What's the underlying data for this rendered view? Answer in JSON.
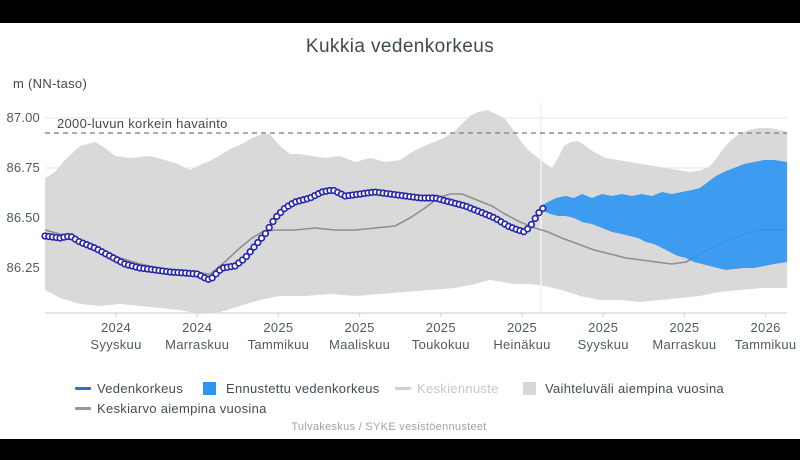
{
  "title": "Kukkia vedenkorkeus",
  "y_axis": {
    "unit_label": "m (NN-taso)",
    "ticks": [
      "87.00",
      "86.75",
      "86.50",
      "86.25"
    ]
  },
  "threshold": {
    "label": "2000-luvun korkein havainto",
    "value": 86.925
  },
  "footer": "Tulvakeskus / SYKE vesistöennusteet",
  "legend": {
    "items": [
      {
        "label": "Vedenkorkeus",
        "swatch": "line",
        "color": "#2e6bd5",
        "enabled": true
      },
      {
        "label": "Ennustettu vedenkorkeus",
        "swatch": "square",
        "color": "#2b95f2",
        "enabled": true
      },
      {
        "label": "Keskiennuste",
        "swatch": "line",
        "color": "#d0d0d0",
        "enabled": false
      },
      {
        "label": "Vaihteluväli aiempina vuosina",
        "swatch": "square",
        "color": "#d7d7d7",
        "enabled": true
      },
      {
        "label": "Keskiarvo aiempina vuosina",
        "swatch": "line",
        "color": "#979797",
        "enabled": true
      }
    ]
  },
  "chart_data": {
    "type": "line",
    "title": "Kukkia vedenkorkeus",
    "ylabel": "m (NN-taso)",
    "ylim": [
      86.0,
      87.09
    ],
    "y_ticks": [
      87.0,
      86.75,
      86.5,
      86.25
    ],
    "x_unit": "month index, 1 = Syyskuu 2024 (time axis Jul 2024 - Jan 2026)",
    "x_ticks": [
      {
        "m": 1,
        "year": "2024",
        "month": "Syyskuu"
      },
      {
        "m": 3,
        "year": "2024",
        "month": "Marraskuu"
      },
      {
        "m": 5,
        "year": "2025",
        "month": "Tammikuu"
      },
      {
        "m": 7,
        "year": "2025",
        "month": "Maaliskuu"
      },
      {
        "m": 9,
        "year": "2025",
        "month": "Toukokuu"
      },
      {
        "m": 11,
        "year": "2025",
        "month": "Heinäkuu"
      },
      {
        "m": 13,
        "year": "2025",
        "month": "Syyskuu"
      },
      {
        "m": 15,
        "year": "2025",
        "month": "Marraskuu"
      },
      {
        "m": 17,
        "year": "2026",
        "month": "Tammikuu"
      }
    ],
    "now_month": 11.47,
    "threshold": {
      "label": "2000-luvun korkein havainto",
      "value": 86.925
    },
    "legend_position": "bottom",
    "grid": "horizontal",
    "series": [
      {
        "name": "Vedenkorkeus",
        "type": "line-markers",
        "color": "#2525ad",
        "points": [
          [
            -0.75,
            86.41
          ],
          [
            -0.38,
            86.4
          ],
          [
            -0.13,
            86.41
          ],
          [
            0.11,
            86.38
          ],
          [
            0.48,
            86.35
          ],
          [
            0.85,
            86.31
          ],
          [
            1.22,
            86.27
          ],
          [
            1.59,
            86.25
          ],
          [
            1.96,
            86.24
          ],
          [
            2.33,
            86.23
          ],
          [
            2.7,
            86.225
          ],
          [
            3.0,
            86.22
          ],
          [
            3.19,
            86.2
          ],
          [
            3.32,
            86.19
          ],
          [
            3.46,
            86.22
          ],
          [
            3.61,
            86.25
          ],
          [
            3.93,
            86.26
          ],
          [
            4.18,
            86.3
          ],
          [
            4.42,
            86.36
          ],
          [
            4.67,
            86.42
          ],
          [
            4.92,
            86.5
          ],
          [
            5.16,
            86.55
          ],
          [
            5.41,
            86.58
          ],
          [
            5.78,
            86.6
          ],
          [
            6.07,
            86.63
          ],
          [
            6.34,
            86.64
          ],
          [
            6.64,
            86.61
          ],
          [
            7.01,
            86.62
          ],
          [
            7.38,
            86.63
          ],
          [
            7.75,
            86.62
          ],
          [
            8.12,
            86.61
          ],
          [
            8.49,
            86.6
          ],
          [
            8.86,
            86.6
          ],
          [
            9.23,
            86.58
          ],
          [
            9.6,
            86.56
          ],
          [
            9.97,
            86.53
          ],
          [
            10.33,
            86.5
          ],
          [
            10.65,
            86.46
          ],
          [
            10.9,
            86.44
          ],
          [
            11.07,
            86.43
          ],
          [
            11.24,
            86.47
          ],
          [
            11.39,
            86.52
          ],
          [
            11.52,
            86.55
          ]
        ]
      },
      {
        "name": "Keskiarvo aiempina vuosina",
        "type": "line",
        "color": "#8f8f8f",
        "points": [
          [
            -0.75,
            86.44
          ],
          [
            -0.38,
            86.42
          ],
          [
            -0.01,
            86.4
          ],
          [
            0.36,
            86.37
          ],
          [
            0.73,
            86.33
          ],
          [
            1.1,
            86.3
          ],
          [
            1.59,
            86.27
          ],
          [
            2.08,
            86.25
          ],
          [
            2.58,
            86.235
          ],
          [
            3.07,
            86.225
          ],
          [
            3.32,
            86.22
          ],
          [
            3.68,
            86.28
          ],
          [
            4.05,
            86.35
          ],
          [
            4.35,
            86.4
          ],
          [
            4.6,
            86.43
          ],
          [
            4.92,
            86.44
          ],
          [
            5.41,
            86.44
          ],
          [
            5.9,
            86.45
          ],
          [
            6.39,
            86.44
          ],
          [
            6.89,
            86.44
          ],
          [
            7.38,
            86.45
          ],
          [
            7.87,
            86.46
          ],
          [
            8.24,
            86.5
          ],
          [
            8.61,
            86.55
          ],
          [
            8.93,
            86.6
          ],
          [
            9.23,
            86.62
          ],
          [
            9.52,
            86.62
          ],
          [
            9.77,
            86.6
          ],
          [
            10.01,
            86.58
          ],
          [
            10.26,
            86.56
          ],
          [
            10.58,
            86.52
          ],
          [
            10.95,
            86.48
          ],
          [
            11.32,
            86.45
          ],
          [
            11.64,
            86.43
          ],
          [
            11.98,
            86.4
          ],
          [
            12.38,
            86.37
          ],
          [
            12.77,
            86.34
          ],
          [
            13.17,
            86.32
          ],
          [
            13.56,
            86.3
          ],
          [
            13.95,
            86.29
          ],
          [
            14.3,
            86.28
          ],
          [
            14.69,
            86.27
          ],
          [
            15.04,
            86.28
          ],
          [
            15.38,
            86.32
          ],
          [
            15.75,
            86.36
          ],
          [
            16.12,
            86.39
          ],
          [
            16.49,
            86.42
          ],
          [
            16.76,
            86.44
          ],
          [
            17.11,
            86.44
          ],
          [
            17.53,
            86.44
          ]
        ]
      },
      {
        "name": "Vaihteluväli aiempina vuosina",
        "type": "band",
        "color": "#d9d9d9",
        "upper": [
          [
            -0.75,
            86.7
          ],
          [
            -0.5,
            86.73
          ],
          [
            -0.26,
            86.79
          ],
          [
            0.11,
            86.86
          ],
          [
            0.48,
            86.88
          ],
          [
            0.73,
            86.85
          ],
          [
            0.98,
            86.81
          ],
          [
            1.34,
            86.8
          ],
          [
            1.84,
            86.81
          ],
          [
            2.21,
            86.79
          ],
          [
            2.53,
            86.77
          ],
          [
            2.82,
            86.74
          ],
          [
            3.12,
            86.77
          ],
          [
            3.36,
            86.79
          ],
          [
            3.61,
            86.82
          ],
          [
            3.86,
            86.85
          ],
          [
            4.1,
            86.87
          ],
          [
            4.35,
            86.9
          ],
          [
            4.6,
            86.92
          ],
          [
            4.79,
            86.92
          ],
          [
            5.04,
            86.86
          ],
          [
            5.29,
            86.82
          ],
          [
            5.53,
            86.82
          ],
          [
            5.83,
            86.81
          ],
          [
            6.15,
            86.8
          ],
          [
            6.52,
            86.81
          ],
          [
            6.89,
            86.78
          ],
          [
            7.26,
            86.8
          ],
          [
            7.63,
            86.78
          ],
          [
            8.0,
            86.79
          ],
          [
            8.29,
            86.83
          ],
          [
            8.59,
            86.86
          ],
          [
            8.83,
            86.88
          ],
          [
            9.08,
            86.9
          ],
          [
            9.32,
            86.93
          ],
          [
            9.52,
            86.97
          ],
          [
            9.72,
            87.01
          ],
          [
            9.92,
            87.03
          ],
          [
            10.14,
            87.04
          ],
          [
            10.36,
            87.02
          ],
          [
            10.56,
            87.0
          ],
          [
            10.75,
            86.95
          ],
          [
            10.95,
            86.89
          ],
          [
            11.15,
            86.84
          ],
          [
            11.34,
            86.81
          ],
          [
            11.47,
            86.79
          ],
          [
            11.59,
            86.77
          ],
          [
            11.74,
            86.75
          ],
          [
            11.89,
            86.8
          ],
          [
            12.03,
            86.86
          ],
          [
            12.21,
            86.88
          ],
          [
            12.38,
            86.885
          ],
          [
            12.57,
            86.86
          ],
          [
            12.77,
            86.83
          ],
          [
            13.07,
            86.8
          ],
          [
            13.36,
            86.79
          ],
          [
            13.66,
            86.78
          ],
          [
            13.95,
            86.77
          ],
          [
            14.25,
            86.76
          ],
          [
            14.54,
            86.75
          ],
          [
            14.84,
            86.74
          ],
          [
            15.14,
            86.73
          ],
          [
            15.43,
            86.74
          ],
          [
            15.63,
            86.76
          ],
          [
            15.8,
            86.8
          ],
          [
            15.97,
            86.85
          ],
          [
            16.15,
            86.89
          ],
          [
            16.34,
            86.92
          ],
          [
            16.59,
            86.94
          ],
          [
            16.84,
            86.95
          ],
          [
            17.11,
            86.95
          ],
          [
            17.35,
            86.94
          ],
          [
            17.53,
            86.93
          ]
        ],
        "lower": [
          [
            -0.75,
            86.14
          ],
          [
            -0.38,
            86.1
          ],
          [
            0.11,
            86.07
          ],
          [
            0.61,
            86.06
          ],
          [
            1.1,
            86.07
          ],
          [
            1.59,
            86.06
          ],
          [
            2.08,
            86.05
          ],
          [
            2.58,
            86.04
          ],
          [
            3.07,
            86.02
          ],
          [
            3.56,
            86.03
          ],
          [
            4.05,
            86.06
          ],
          [
            4.55,
            86.09
          ],
          [
            5.04,
            86.11
          ],
          [
            5.65,
            86.11
          ],
          [
            6.27,
            86.12
          ],
          [
            6.89,
            86.11
          ],
          [
            7.5,
            86.12
          ],
          [
            8.12,
            86.13
          ],
          [
            8.73,
            86.14
          ],
          [
            9.35,
            86.15
          ],
          [
            9.84,
            86.17
          ],
          [
            10.21,
            86.19
          ],
          [
            10.51,
            86.18
          ],
          [
            10.83,
            86.17
          ],
          [
            11.2,
            86.17
          ],
          [
            11.57,
            86.16
          ],
          [
            11.98,
            86.14
          ],
          [
            12.43,
            86.11
          ],
          [
            12.92,
            86.09
          ],
          [
            13.41,
            86.09
          ],
          [
            13.9,
            86.08
          ],
          [
            14.4,
            86.09
          ],
          [
            14.89,
            86.1
          ],
          [
            15.38,
            86.11
          ],
          [
            15.87,
            86.13
          ],
          [
            16.37,
            86.14
          ],
          [
            16.91,
            86.15
          ],
          [
            17.53,
            86.15
          ]
        ]
      },
      {
        "name": "Ennustettu vedenkorkeus",
        "type": "band",
        "color": "#2b95f2",
        "upper": [
          [
            11.47,
            86.56
          ],
          [
            11.64,
            86.58
          ],
          [
            11.84,
            86.6
          ],
          [
            12.08,
            86.61
          ],
          [
            12.28,
            86.6
          ],
          [
            12.48,
            86.62
          ],
          [
            12.72,
            86.6
          ],
          [
            12.97,
            86.62
          ],
          [
            13.22,
            86.61
          ],
          [
            13.46,
            86.62
          ],
          [
            13.71,
            86.61
          ],
          [
            13.95,
            86.62
          ],
          [
            14.2,
            86.61
          ],
          [
            14.45,
            86.63
          ],
          [
            14.69,
            86.62
          ],
          [
            14.94,
            86.63
          ],
          [
            15.19,
            86.64
          ],
          [
            15.38,
            86.65
          ],
          [
            15.58,
            86.68
          ],
          [
            15.78,
            86.71
          ],
          [
            15.97,
            86.73
          ],
          [
            16.22,
            86.75
          ],
          [
            16.47,
            86.77
          ],
          [
            16.71,
            86.78
          ],
          [
            16.96,
            86.79
          ],
          [
            17.21,
            86.79
          ],
          [
            17.53,
            86.78
          ]
        ],
        "lower": [
          [
            11.47,
            86.54
          ],
          [
            11.69,
            86.52
          ],
          [
            11.89,
            86.51
          ],
          [
            12.08,
            86.51
          ],
          [
            12.28,
            86.5
          ],
          [
            12.48,
            86.48
          ],
          [
            12.72,
            86.47
          ],
          [
            12.97,
            86.45
          ],
          [
            13.22,
            86.43
          ],
          [
            13.46,
            86.42
          ],
          [
            13.66,
            86.41
          ],
          [
            13.86,
            86.4
          ],
          [
            14.05,
            86.38
          ],
          [
            14.25,
            86.37
          ],
          [
            14.45,
            86.35
          ],
          [
            14.64,
            86.33
          ],
          [
            14.84,
            86.31
          ],
          [
            15.04,
            86.3
          ],
          [
            15.24,
            86.28
          ],
          [
            15.43,
            86.27
          ],
          [
            15.63,
            86.26
          ],
          [
            15.82,
            86.25
          ],
          [
            16.02,
            86.24
          ],
          [
            16.22,
            86.245
          ],
          [
            16.47,
            86.25
          ],
          [
            16.71,
            86.25
          ],
          [
            16.96,
            86.26
          ],
          [
            17.21,
            86.27
          ],
          [
            17.53,
            86.28
          ]
        ]
      },
      {
        "name": "Keskiennuste",
        "type": "line",
        "color": "#d0d0d0",
        "visible": false,
        "points": []
      }
    ]
  }
}
